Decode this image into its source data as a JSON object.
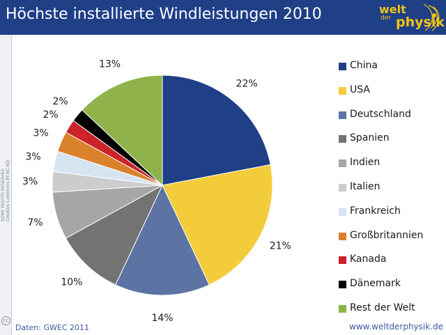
{
  "header": {
    "title": "Höchste installierte Windleistungen 2010",
    "logo_top": "welt",
    "logo_mid": "der",
    "logo_bottom": "physik"
  },
  "footer": {
    "credit": "Daten: GWEC 2011",
    "url": "www.weltderphysik.de",
    "license_line1": "SOME RIGHTS RESERVED",
    "license_line2": "Creative Commons BY-NC-ND",
    "license_icon": "cc"
  },
  "colors": {
    "header_bg": "#1f3f87",
    "logo": "#f2c513"
  },
  "chart_data": {
    "type": "pie",
    "title": "Höchste installierte Windleistungen 2010",
    "legend_position": "right",
    "start_angle": "12 o'clock, clockwise",
    "series": [
      {
        "name": "China",
        "value": 22,
        "label": "22%",
        "color": "#1f3f87"
      },
      {
        "name": "USA",
        "value": 21,
        "label": "21%",
        "color": "#f2cc3a"
      },
      {
        "name": "Deutschland",
        "value": 14,
        "label": "14%",
        "color": "#5c73a3"
      },
      {
        "name": "Spanien",
        "value": 10,
        "label": "10%",
        "color": "#737373"
      },
      {
        "name": "Indien",
        "value": 7,
        "label": "7%",
        "color": "#a6a6a6"
      },
      {
        "name": "Italien",
        "value": 3,
        "label": "3%",
        "color": "#cccccc"
      },
      {
        "name": "Frankreich",
        "value": 3,
        "label": "3%",
        "color": "#d6e4f2"
      },
      {
        "name": "Großbritannien",
        "value": 3,
        "label": "3%",
        "color": "#d9822b"
      },
      {
        "name": "Kanada",
        "value": 2,
        "label": "2%",
        "color": "#cc2229"
      },
      {
        "name": "Dänemark",
        "value": 2,
        "label": "2%",
        "color": "#000000"
      },
      {
        "name": "Rest der Welt",
        "value": 13,
        "label": "13%",
        "color": "#8fb34a"
      }
    ]
  }
}
